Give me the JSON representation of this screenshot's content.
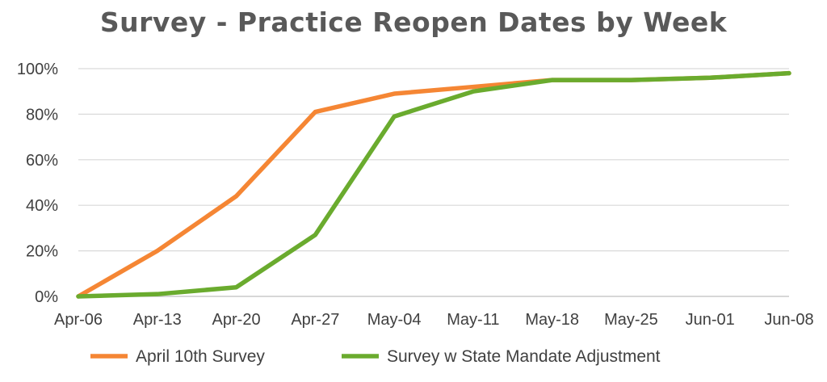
{
  "chart_data": {
    "type": "line",
    "title": "Survey - Practice Reopen Dates by Week",
    "categories": [
      "Apr-06",
      "Apr-13",
      "Apr-20",
      "Apr-27",
      "May-04",
      "May-11",
      "May-18",
      "May-25",
      "Jun-01",
      "Jun-08"
    ],
    "series": [
      {
        "name": "April 10th Survey",
        "color": "#F58634",
        "values": [
          0,
          20,
          44,
          81,
          89,
          92,
          95,
          95,
          96,
          98
        ]
      },
      {
        "name": "Survey w State Mandate Adjustment",
        "color": "#6AAB2E",
        "values": [
          0,
          1,
          4,
          27,
          79,
          90,
          95,
          95,
          96,
          98
        ]
      }
    ],
    "yticks": [
      "0%",
      "20%",
      "40%",
      "60%",
      "80%",
      "100%"
    ],
    "ylim": [
      0,
      100
    ],
    "grid": true,
    "legend_position": "bottom"
  }
}
